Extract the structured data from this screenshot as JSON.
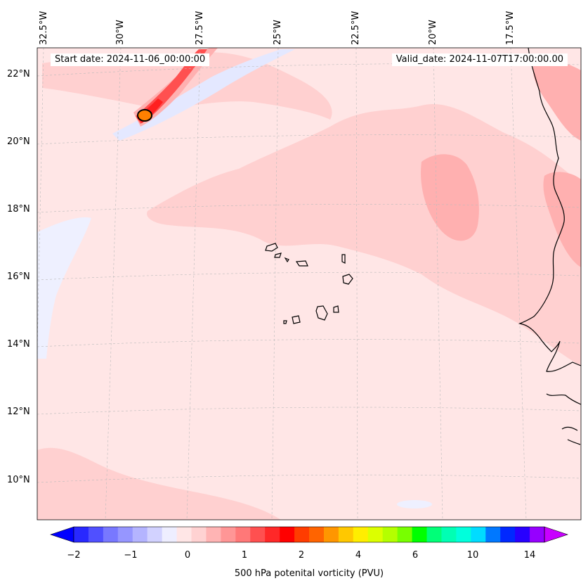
{
  "map": {
    "start_date_label": "Start date: 2024-11-06_00:00:00",
    "valid_date_label": "Valid_date: 2024-11-07T17:00:00.00",
    "longitude_labels": [
      "32.5°W",
      "30°W",
      "27.5°W",
      "25°W",
      "22.5°W",
      "20°W",
      "17.5°W"
    ],
    "latitude_labels": [
      "22°N",
      "20°N",
      "18°N",
      "16°N",
      "14°N",
      "12°N",
      "10°N"
    ],
    "field": "500 hPa potential vorticity",
    "background_color": "#ffe6e6",
    "positive_color": "#ffb3b3",
    "negative_color": "#e8ecff",
    "coastline_color": "#000000"
  },
  "colorbar": {
    "title": "500 hPa potenital vorticity (PVU)",
    "tick_labels": [
      "−2",
      "−1",
      "0",
      "1",
      "2",
      "4",
      "6",
      "10",
      "14"
    ],
    "colors": [
      "#0000ff",
      "#2828ff",
      "#5050ff",
      "#7878ff",
      "#9696ff",
      "#b4b4ff",
      "#d2d2ff",
      "#eeeeff",
      "#ffe6e6",
      "#ffd2d2",
      "#ffb4b4",
      "#ff9696",
      "#ff7878",
      "#ff5050",
      "#ff2828",
      "#ff0000",
      "#ff3c00",
      "#ff6400",
      "#ff9600",
      "#ffc800",
      "#ffee00",
      "#dcff00",
      "#b4ff00",
      "#78ff00",
      "#00ff00",
      "#00ff78",
      "#00ffb4",
      "#00ffdc",
      "#00dcff",
      "#0078ff",
      "#0028ff",
      "#2800ff",
      "#9600ff",
      "#c800ff"
    ]
  }
}
